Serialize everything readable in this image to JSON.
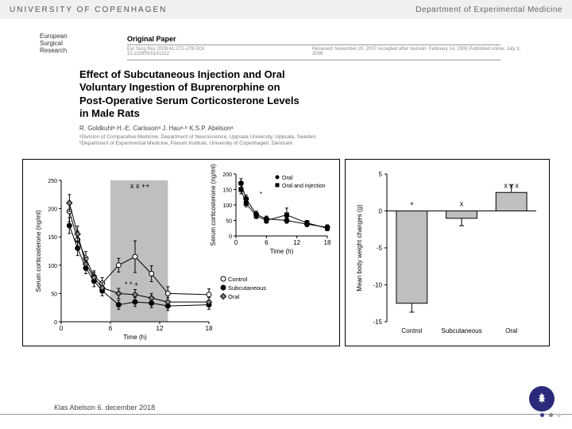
{
  "header": {
    "uni": "UNIVERSITY OF COPENHAGEN",
    "dept": "Department of Experimental Medicine"
  },
  "journal": {
    "l1": "European",
    "l2": "Surgical",
    "l3": "Research",
    "orig": "Original Paper",
    "meta1": "Eur Surg Res 2008;41:272–278   DOI: 10.1159/000141312",
    "meta2": "Received: November 20, 2007   Accepted after revision: February 14, 2008   Published online: July 3, 2008"
  },
  "paper": {
    "t1": "Effect of Subcutaneous Injection and Oral",
    "t2": "Voluntary Ingestion of Buprenorphine on",
    "t3": "Post-Operative Serum Corticosterone Levels",
    "t4": "in Male Rats",
    "authors": "R. Goldkuhlᵃ   H.-E. Carlssonᵃ   J. Hauᵃ·ᵇ   K.S.P. Abelsonᵃ",
    "aff1": "ᵃDivision of Comparative Medicine, Department of Neuroscience, Uppsala University, Uppsala, Sweden;",
    "aff2": "ᵇDepartment of Experimental Medicine, Panum Institute, University of Copenhagen, Denmark"
  },
  "chartA": {
    "type": "line",
    "xlabel": "Time (h)",
    "ylabel": "Serum corticosterone (ng/ml)",
    "xlim": [
      0,
      18
    ],
    "xticks": [
      0,
      6,
      12,
      18
    ],
    "ylim": [
      0,
      250
    ],
    "yticks": [
      0,
      50,
      100,
      150,
      200,
      250
    ],
    "shade_x": [
      6,
      13
    ],
    "shade_color": "#bfbfbf",
    "legend": [
      {
        "label": "Control",
        "marker": "o",
        "fill": "#ffffff"
      },
      {
        "label": "Subcutaneous",
        "marker": "o",
        "fill": "#000000"
      },
      {
        "label": "Oral",
        "marker": "diamond",
        "fill": "#808080"
      }
    ],
    "series": {
      "control": {
        "x": [
          1,
          2,
          3,
          4,
          5,
          7,
          9,
          11,
          13,
          18
        ],
        "y": [
          195,
          145,
          112,
          80,
          68,
          100,
          115,
          85,
          50,
          48
        ],
        "err": [
          18,
          15,
          12,
          10,
          10,
          12,
          28,
          14,
          12,
          10
        ],
        "stroke": "#000",
        "fill": "#fff",
        "marker": "o"
      },
      "subcutaneous": {
        "x": [
          1,
          2,
          3,
          4,
          5,
          7,
          9,
          11,
          13,
          18
        ],
        "y": [
          170,
          130,
          95,
          72,
          55,
          30,
          35,
          33,
          28,
          30
        ],
        "err": [
          14,
          13,
          10,
          10,
          9,
          8,
          8,
          8,
          8,
          8
        ],
        "stroke": "#000",
        "fill": "#000",
        "marker": "o"
      },
      "oral": {
        "x": [
          1,
          2,
          3,
          4,
          5,
          7,
          9,
          11,
          13,
          18
        ],
        "y": [
          210,
          155,
          102,
          78,
          60,
          50,
          48,
          42,
          35,
          35
        ],
        "err": [
          15,
          14,
          11,
          9,
          9,
          9,
          9,
          8,
          8,
          8
        ],
        "stroke": "#000",
        "fill": "#808080",
        "marker": "d"
      }
    },
    "annot": {
      "top": "x x ++",
      "mid": "* * +",
      "font": 9
    },
    "axis_fontsize": 9
  },
  "chartB": {
    "type": "line",
    "xlabel": "Time (h)",
    "ylabel": "Serum corticosterone (ng/ml)",
    "xlim": [
      0,
      18
    ],
    "xticks": [
      0,
      6,
      12,
      18
    ],
    "ylim": [
      0,
      200
    ],
    "yticks": [
      0,
      50,
      100,
      150,
      200
    ],
    "legend": [
      {
        "label": "Oral",
        "marker": "o",
        "fill": "#000"
      },
      {
        "label": "Oral and injection",
        "marker": "s",
        "fill": "#000"
      }
    ],
    "series": {
      "oral": {
        "x": [
          1,
          2,
          4,
          6,
          10,
          14,
          18
        ],
        "y": [
          170,
          120,
          70,
          55,
          50,
          38,
          28
        ],
        "err": [
          15,
          12,
          10,
          9,
          9,
          8,
          8
        ],
        "stroke": "#000",
        "fill": "#000",
        "marker": "o"
      },
      "oralinj": {
        "x": [
          1,
          2,
          4,
          6,
          10,
          14,
          18
        ],
        "y": [
          150,
          105,
          65,
          50,
          68,
          42,
          25
        ],
        "err": [
          14,
          11,
          9,
          9,
          22,
          8,
          8
        ],
        "stroke": "#000",
        "fill": "#000",
        "marker": "s"
      }
    }
  },
  "chartC": {
    "type": "bar",
    "ylabel": "Mean body weight changes (g)",
    "ylim": [
      -15,
      5
    ],
    "yticks": [
      -15,
      -10,
      -5,
      0,
      5
    ],
    "categories": [
      "Control",
      "Subcutaneous",
      "Oral"
    ],
    "values": [
      -12.5,
      -1.0,
      2.5
    ],
    "errs": [
      1.2,
      1.0,
      1.0
    ],
    "bar_color": "#bfbfbf",
    "annot": [
      "+",
      "x",
      "x x x"
    ]
  },
  "footer": {
    "text": "Klas Abelson 6. december 2018"
  },
  "colors": {
    "seal": "#2a2a7a",
    "dot1": "#3a3a8a",
    "dot2": "#888",
    "dot3": "#ccc"
  }
}
